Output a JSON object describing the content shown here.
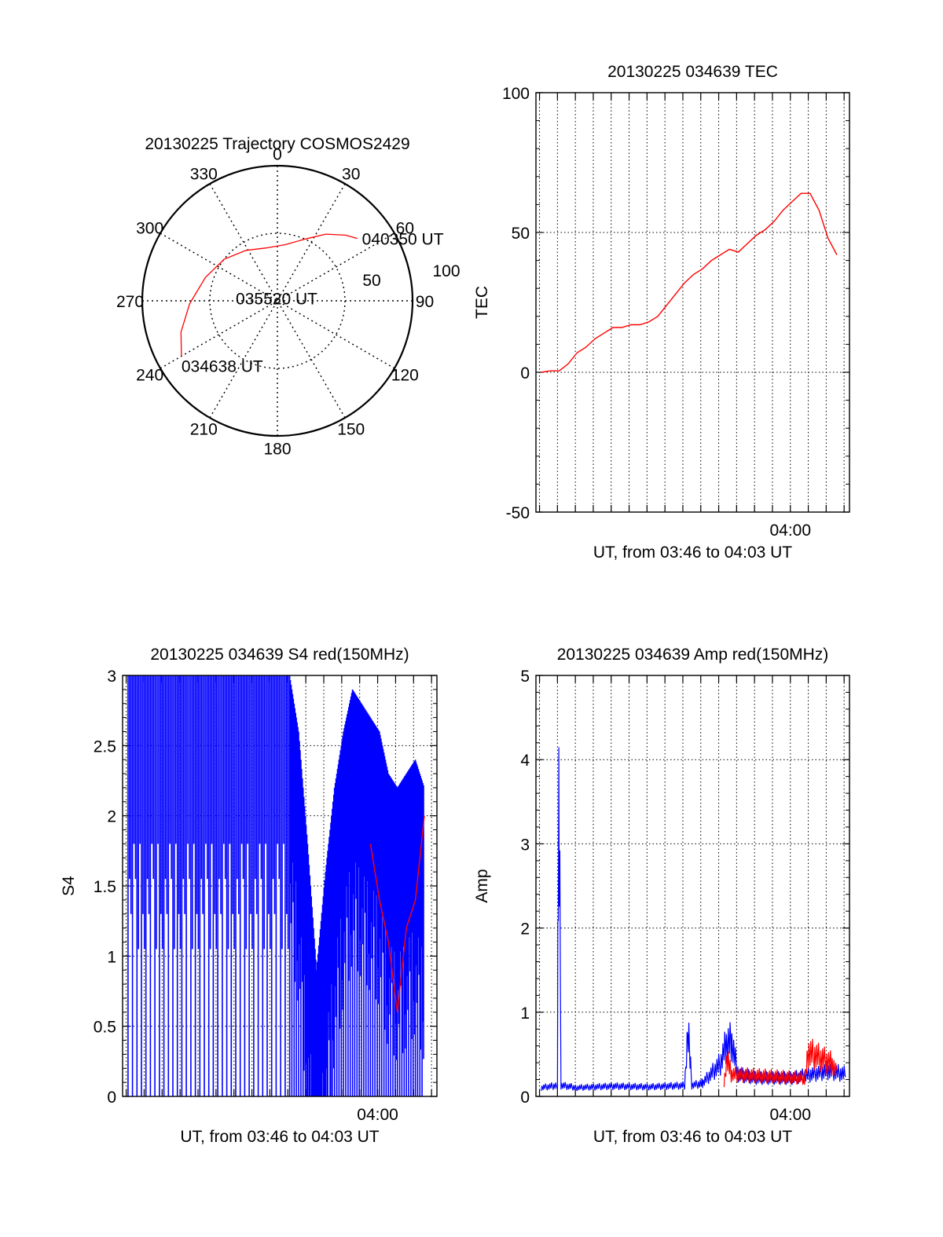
{
  "colors": {
    "series_red": "#ff0000",
    "series_blue": "#0000ff",
    "axis": "#000000",
    "grid": "#000000"
  },
  "chart_data": [
    {
      "type": "polar-trajectory",
      "title": "20130225 Trajectory COSMOS2429",
      "azimuth_labels": [
        "0",
        "30",
        "60",
        "90",
        "120",
        "150",
        "180",
        "210",
        "240",
        "270",
        "300",
        "330"
      ],
      "radial_labels": [
        "50",
        "100"
      ],
      "radial_range": [
        0,
        100
      ],
      "series": [
        {
          "color": "red",
          "points": [
            {
              "az": 240,
              "r": 82
            },
            {
              "az": 252,
              "r": 75
            },
            {
              "az": 268,
              "r": 65
            },
            {
              "az": 288,
              "r": 56
            },
            {
              "az": 308,
              "r": 50
            },
            {
              "az": 328,
              "r": 44
            },
            {
              "az": 348,
              "r": 40
            },
            {
              "az": 8,
              "r": 42
            },
            {
              "az": 24,
              "r": 50
            },
            {
              "az": 36,
              "r": 61
            },
            {
              "az": 46,
              "r": 70
            },
            {
              "az": 52,
              "r": 75
            }
          ]
        }
      ],
      "annotations": [
        {
          "text": "040350 UT",
          "az": 52,
          "r": 75
        },
        {
          "text": "035520 UT",
          "az": 20,
          "r": 12
        },
        {
          "text": "034638 UT",
          "az": 240,
          "r": 82
        }
      ]
    },
    {
      "type": "line",
      "title": "20130225 034639 TEC",
      "xlabel": "UT, from 03:46 to 04:03 UT",
      "ylabel": "TEC",
      "xlim": [
        -0.3,
        17.2
      ],
      "ylim": [
        -50,
        100
      ],
      "yticks": [
        -50,
        0,
        50,
        100
      ],
      "xtick_labels": [
        {
          "x": 13.9,
          "label": "04:00"
        }
      ],
      "grid": true,
      "series": [
        {
          "color": "red",
          "x": [
            0,
            0.5,
            1,
            1.5,
            2,
            2.5,
            3,
            3.5,
            4,
            4.5,
            5,
            5.5,
            6,
            6.5,
            7,
            7.5,
            8,
            8.5,
            9,
            9.5,
            10,
            10.5,
            11,
            11.5,
            12,
            12.5,
            13,
            13.5,
            14,
            14.5,
            15,
            15.5,
            16,
            16.5
          ],
          "y": [
            0,
            0.5,
            0.5,
            3,
            7,
            9,
            12,
            14,
            16,
            16,
            17,
            17,
            18,
            20,
            24,
            28,
            32,
            35,
            37,
            40,
            42,
            44,
            43,
            46,
            49,
            51,
            54,
            58,
            61,
            64,
            64,
            58,
            48,
            42
          ]
        }
      ]
    },
    {
      "type": "line",
      "title": "20130225 034639 S4 red(150MHz)",
      "xlabel": "UT, from 03:46 to 04:03 UT",
      "ylabel": "S4",
      "xlim": [
        -0.3,
        17.2
      ],
      "ylim": [
        0,
        3
      ],
      "yticks": [
        0,
        0.5,
        1,
        1.5,
        2,
        2.5,
        3
      ],
      "ytick_labels": [
        "0",
        "0.5",
        "1",
        "1.5",
        "2",
        "2.5",
        "3"
      ],
      "xtick_labels": [
        {
          "x": 13.9,
          "label": "04:00"
        }
      ],
      "grid": true,
      "series": [
        {
          "color": "blue",
          "x": [
            0,
            1,
            2,
            3,
            4,
            5,
            6,
            7,
            8,
            9,
            9.5,
            10,
            10.5,
            11,
            11.5,
            12,
            12.5,
            13,
            13.5,
            14,
            14.5,
            15,
            15.5,
            16,
            16.5
          ],
          "y": [
            3,
            3,
            3,
            3,
            3,
            3,
            3,
            3,
            3,
            3,
            2.6,
            1.8,
            0.9,
            1.6,
            2.2,
            2.6,
            2.9,
            2.8,
            2.7,
            2.6,
            2.3,
            2.2,
            2.3,
            2.4,
            2.2
          ]
        },
        {
          "color": "red",
          "x": [
            13.5,
            14,
            14.5,
            15,
            15.5,
            16,
            16.5
          ],
          "y": [
            1.8,
            1.4,
            1.1,
            0.6,
            1.2,
            1.4,
            2.0
          ]
        }
      ]
    },
    {
      "type": "line",
      "title": "20130225 034639 Amp red(150MHz)",
      "xlabel": "UT, from 03:46 to 04:03 UT",
      "ylabel": "Amp",
      "xlim": [
        -0.3,
        17.2
      ],
      "ylim": [
        0,
        5
      ],
      "yticks": [
        0,
        1,
        2,
        3,
        4,
        5
      ],
      "xtick_labels": [
        {
          "x": 13.9,
          "label": "04:00"
        }
      ],
      "grid": true,
      "series": [
        {
          "color": "blue",
          "x": [
            0,
            0.9,
            0.95,
            1,
            1.1,
            2,
            4,
            6,
            8,
            8.2,
            8.3,
            8.4,
            9,
            10,
            10.3,
            10.6,
            11,
            12,
            14,
            15,
            16,
            17
          ],
          "y": [
            0.12,
            0.15,
            3.8,
            4.1,
            0.15,
            0.12,
            0.14,
            0.13,
            0.15,
            0.95,
            0.6,
            0.15,
            0.18,
            0.45,
            0.7,
            0.75,
            0.3,
            0.25,
            0.25,
            0.3,
            0.35,
            0.3
          ]
        },
        {
          "color": "red",
          "x": [
            10.2,
            10.4,
            10.6,
            14.7,
            14.9,
            16.2,
            16.5
          ],
          "y": [
            0.2,
            0.55,
            0.3,
            0.25,
            0.6,
            0.45,
            0.3
          ]
        }
      ]
    }
  ]
}
